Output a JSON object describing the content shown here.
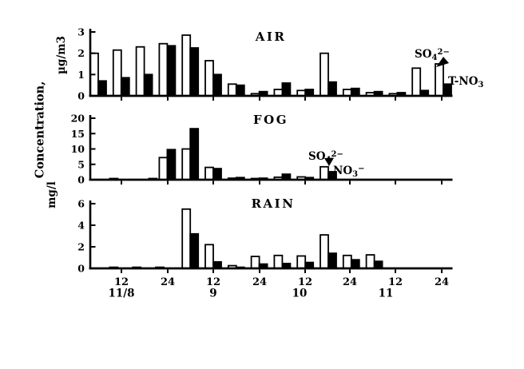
{
  "figure": {
    "ylabel": "Concentration,",
    "unit_air": "µg/m3",
    "unit_fog_rain": "mg/l"
  },
  "x_axis": {
    "hour_ticks": [
      "12",
      "24",
      "12",
      "24",
      "12",
      "24",
      "12",
      "24"
    ],
    "day_labels": [
      "11/8",
      "9",
      "10",
      "11"
    ],
    "slot_hours": 6
  },
  "legend": {
    "air_so4": {
      "base": "SO",
      "sub": "4",
      "sup": "2−"
    },
    "air_no3": {
      "base": "T-NO",
      "sub": "3",
      "sup": ""
    },
    "fog_so4": {
      "base": "SO",
      "sub": "4",
      "sup": "2−"
    },
    "fog_no3": {
      "base": "NO",
      "sub": "3",
      "sup": "−"
    }
  },
  "chart_data": [
    {
      "type": "bar",
      "title": "AIR",
      "ylabel": "µg/m3",
      "ylim": [
        0,
        3
      ],
      "yticks": [
        0,
        1,
        2,
        3
      ],
      "x_encoding": "slot index, 6 h per slot, ticks at 12 h and 24 h of each day 11/8-11/11",
      "series": [
        {
          "name": "SO4 2-",
          "style": "open",
          "points": [
            [
              0,
              2.0
            ],
            [
              1,
              2.15
            ],
            [
              2,
              2.3
            ],
            [
              3,
              2.45
            ],
            [
              4,
              2.85
            ],
            [
              5,
              1.65
            ],
            [
              6,
              0.55
            ],
            [
              7,
              0.1
            ],
            [
              8,
              0.3
            ],
            [
              9,
              0.25
            ],
            [
              10,
              2.0
            ],
            [
              11,
              0.3
            ],
            [
              12,
              0.15
            ],
            [
              13,
              0.1
            ],
            [
              14,
              1.3
            ],
            [
              15,
              1.5
            ]
          ]
        },
        {
          "name": "T-NO3",
          "style": "filled",
          "points": [
            [
              0,
              0.7
            ],
            [
              1,
              0.85
            ],
            [
              2,
              1.0
            ],
            [
              3,
              2.35
            ],
            [
              4,
              2.25
            ],
            [
              5,
              1.0
            ],
            [
              6,
              0.5
            ],
            [
              7,
              0.2
            ],
            [
              8,
              0.6
            ],
            [
              9,
              0.3
            ],
            [
              10,
              0.65
            ],
            [
              11,
              0.35
            ],
            [
              12,
              0.2
            ],
            [
              13,
              0.15
            ],
            [
              14,
              0.25
            ],
            [
              15,
              0.55
            ]
          ]
        }
      ]
    },
    {
      "type": "bar",
      "title": "FOG",
      "ylabel": "mg/l",
      "ylim": [
        0,
        20
      ],
      "yticks": [
        0,
        5,
        10,
        15,
        20
      ],
      "x_encoding": "slot index, 6 h per slot, shared axis with AIR and RAIN",
      "series": [
        {
          "name": "SO4 2-",
          "style": "open",
          "points": [
            [
              3,
              7.2
            ],
            [
              4,
              10.0
            ],
            [
              5,
              4.0
            ],
            [
              6,
              0.5
            ],
            [
              7,
              0.4
            ],
            [
              8,
              0.8
            ],
            [
              9,
              0.9
            ],
            [
              10,
              4.2
            ]
          ]
        },
        {
          "name": "NO3 -",
          "style": "filled",
          "points": [
            [
              0.5,
              0.4
            ],
            [
              2.2,
              0.4
            ],
            [
              3,
              9.8
            ],
            [
              4,
              16.6
            ],
            [
              5,
              3.6
            ],
            [
              6,
              0.7
            ],
            [
              7,
              0.5
            ],
            [
              8,
              1.8
            ],
            [
              9,
              0.7
            ],
            [
              10,
              2.6
            ]
          ]
        }
      ]
    },
    {
      "type": "bar",
      "title": "RAIN",
      "ylabel": "mg/l",
      "ylim": [
        0,
        6
      ],
      "yticks": [
        0,
        2,
        4,
        6
      ],
      "x_encoding": "slot index, 6 h per slot, shared axis with AIR and FOG",
      "series": [
        {
          "name": "SO4 2-",
          "style": "open",
          "points": [
            [
              4,
              5.5
            ],
            [
              5,
              2.2
            ],
            [
              6,
              0.25
            ],
            [
              7,
              1.1
            ],
            [
              8,
              1.2
            ],
            [
              9,
              1.15
            ],
            [
              10,
              3.1
            ],
            [
              11,
              1.2
            ],
            [
              12,
              1.25
            ]
          ]
        },
        {
          "name": "NO3 -",
          "style": "filled",
          "points": [
            [
              0.5,
              0.1
            ],
            [
              1.5,
              0.1
            ],
            [
              2.5,
              0.1
            ],
            [
              4,
              3.2
            ],
            [
              5,
              0.6
            ],
            [
              6,
              0.1
            ],
            [
              7,
              0.4
            ],
            [
              8,
              0.45
            ],
            [
              9,
              0.55
            ],
            [
              10,
              1.4
            ],
            [
              11,
              0.8
            ],
            [
              12,
              0.65
            ]
          ]
        }
      ]
    }
  ]
}
